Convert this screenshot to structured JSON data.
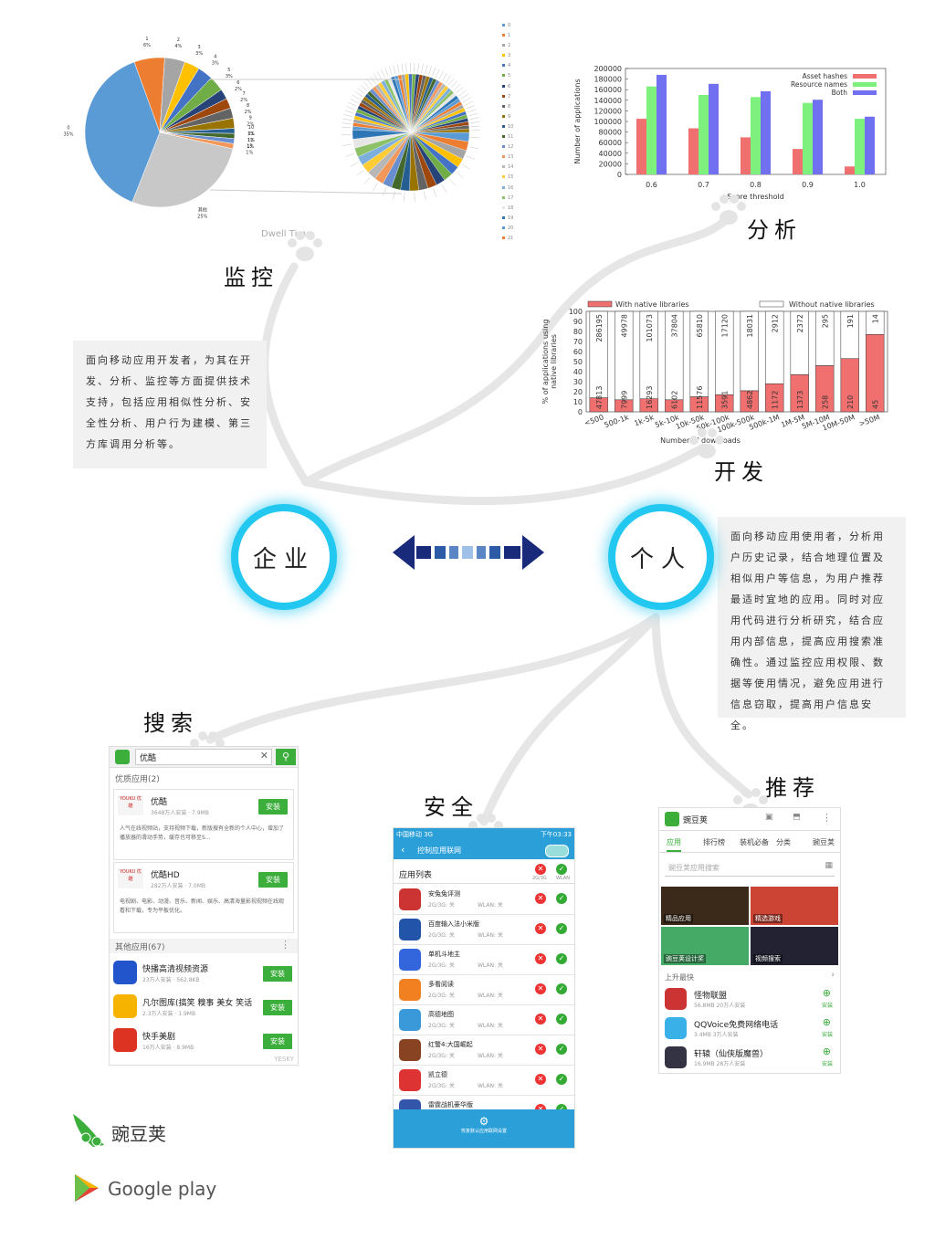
{
  "labels": {
    "monitor": "监控",
    "analyze": "分析",
    "develop": "开发",
    "search": "搜索",
    "security": "安全",
    "recommend": "推荐",
    "enterprise": "企业",
    "personal": "个人",
    "dwell_time": "Dwell Time"
  },
  "notes": {
    "left": "面向移动应用开发者，为其在开发、分析、监控等方面提供技术支持，包括应用相似性分析、安全性分析、用户行为建模、第三方库调用分析等。",
    "right": "面向移动应用使用者，分析用户历史记录，结合地理位置及相似用户等信息，为用户推荐最适时宜地的应用。同时对应用代码进行分析研究，结合应用内部信息，提高应用搜索准确性。通过监控应用权限、数据等使用情况，避免应用进行信息窃取，提高用户信息安全。"
  },
  "logos": {
    "wandoujia": "豌豆荚",
    "google": "Google play"
  },
  "colors": {
    "circle_ring": "#22c8f0",
    "arrow_dark": "#1a2a7a",
    "red": "#f07070",
    "green": "#7ef07e",
    "blue": "#7070f0"
  },
  "chart_data": [
    {
      "type": "pie",
      "labels": [
        "0",
        "1",
        "2",
        "3",
        "4",
        "5",
        "6",
        "7",
        "8",
        "9",
        "10",
        "11",
        "12",
        "13",
        "其他"
      ],
      "values": [
        35,
        6,
        4,
        3,
        3,
        3,
        2,
        2,
        2,
        2,
        1,
        1,
        1,
        1,
        25
      ],
      "value_labels": [
        "35%",
        "6%",
        "4%",
        "3%",
        "3%",
        "3%",
        "2%",
        "2%",
        "2%",
        "2%",
        "1%",
        "1%",
        "1%",
        "1%",
        "25%"
      ],
      "other_label": "其他",
      "other_pct": "25%"
    },
    {
      "type": "pie",
      "legend": [
        "0",
        "1",
        "2",
        "3",
        "4",
        "5",
        "6",
        "7",
        "8",
        "9",
        "10",
        "11",
        "12",
        "13",
        "14",
        "15",
        "16",
        "17",
        "18",
        "19",
        "20",
        "21"
      ],
      "slice_count": 70
    },
    {
      "type": "bar",
      "categories": [
        "0.6",
        "0.7",
        "0.8",
        "0.9",
        "1.0"
      ],
      "series": [
        {
          "name": "Asset hashes",
          "values": [
            105000,
            87000,
            70000,
            48000,
            15000
          ]
        },
        {
          "name": "Resource names",
          "values": [
            166000,
            150000,
            146000,
            135000,
            105000
          ]
        },
        {
          "name": "Both",
          "values": [
            188000,
            171000,
            157000,
            141000,
            109000
          ]
        }
      ],
      "xlabel": "Score threshold",
      "ylabel": "Number of applications",
      "ylim": [
        0,
        200000
      ],
      "yticks": [
        "0",
        "20000",
        "40000",
        "60000",
        "80000",
        "100000",
        "120000",
        "140000",
        "160000",
        "180000",
        "200000"
      ],
      "legend_position": "top-right"
    },
    {
      "type": "bar",
      "stacked": true,
      "categories": [
        "<500",
        "500-1k",
        "1k-5k",
        "5k-10k",
        "10k-50k",
        "50k-100k",
        "100k-500k",
        "500k-1M",
        "1M-5M",
        "5M-10M",
        "10M-50M",
        ">50M"
      ],
      "series": [
        {
          "name": "With native libraries",
          "values": [
            14,
            12,
            13,
            12,
            15,
            17,
            21,
            28,
            37,
            46,
            53,
            77
          ],
          "counts": [
            "47813",
            "7999",
            "16293",
            "6102",
            "11576",
            "3591",
            "4862",
            "1172",
            "1373",
            "258",
            "210",
            "45"
          ]
        },
        {
          "name": "Without native libraries",
          "values": [
            86,
            88,
            87,
            88,
            85,
            83,
            79,
            72,
            63,
            54,
            47,
            23
          ],
          "counts": [
            "286195",
            "49978",
            "101073",
            "37804",
            "65810",
            "17120",
            "18031",
            "2912",
            "2372",
            "295",
            "191",
            "14"
          ]
        }
      ],
      "xlabel": "Number of downloads",
      "ylabel": "% of applications using native libraries",
      "ylim": [
        0,
        100
      ],
      "yticks": [
        "0",
        "10",
        "20",
        "30",
        "40",
        "50",
        "60",
        "70",
        "80",
        "90",
        "100"
      ],
      "legend_position": "top"
    }
  ],
  "phone_search": {
    "query": "优酷",
    "section1": "优质应用(2)",
    "apps1": [
      {
        "name": "优酷",
        "meta": "3648万人安装 · 7.9MB",
        "desc": "人气在线视频站，支持视频下载，新版搜有全新的个人中心，增加了播放器的滑动手势，缓存也可移至S...",
        "btn": "安装",
        "logo": "YOUKU 优酷"
      },
      {
        "name": "优酷HD",
        "meta": "282万人安装 · 7.0MB",
        "desc": "电视剧、电影、动漫、音乐、新闻、娱乐、高清海量影视视频在线观看和下载，专为平板优化。",
        "btn": "安装",
        "logo": "YOUKU 优酷"
      }
    ],
    "section2": "其他应用(67)",
    "apps2": [
      {
        "name": "快播高清视频资源",
        "meta": "23万人安装 · 562.8KB",
        "btn": "安装"
      },
      {
        "name": "凡尔图库(搞笑 糗事 美女 笑话",
        "meta": "2.3万人安装 · 1.9MB",
        "btn": "安装"
      },
      {
        "name": "快手美剧",
        "meta": "16万人安装 · 8.9MB",
        "btn": "安装"
      }
    ],
    "watermark": "YESKY"
  },
  "phone_security": {
    "status": "中国移动 3G",
    "time": "下午03:33",
    "title": "控制应用联网",
    "list_header": "应用列表",
    "col1": "2G/3G",
    "col2": "WLAN",
    "apps": [
      {
        "name": "安兔兔评测",
        "sub": "2G/3G: 关",
        "wlan": "WLAN: 关"
      },
      {
        "name": "百度输入法小米版",
        "sub": "2G/3G: 关",
        "wlan": "WLAN: 关"
      },
      {
        "name": "单机斗地主",
        "sub": "2G/3G: 关",
        "wlan": "WLAN: 关"
      },
      {
        "name": "多看阅读",
        "sub": "2G/3G: 关",
        "wlan": "WLAN: 关"
      },
      {
        "name": "高德地图",
        "sub": "2G/3G: 关",
        "wlan": "WLAN: 关"
      },
      {
        "name": "红警4:大国崛起",
        "sub": "2G/3G: 关",
        "wlan": "WLAN: 关"
      },
      {
        "name": "凯立德",
        "sub": "2G/3G: 关",
        "wlan": "WLAN: 关"
      },
      {
        "name": "雷霆战机豪华版",
        "sub": "",
        "wlan": ""
      }
    ],
    "footer": "恢复默认应用联网设置"
  },
  "phone_recommend": {
    "title": "豌豆荚",
    "tabs": [
      "应用",
      "排行榜",
      "装机必备",
      "分类",
      "豌豆荚"
    ],
    "search_placeholder": "豌豆荚应用搜索",
    "tiles": [
      "精品应用",
      "精选游戏",
      "豌豆荚设计奖",
      "视频搜索"
    ],
    "section": "上升最快",
    "apps": [
      {
        "name": "怪物联盟",
        "meta": "56.8MB  20万人安装",
        "btn": "安装"
      },
      {
        "name": "QQVoice免费网络电话",
        "meta": "3.4MB  3万人安装",
        "btn": "安装"
      },
      {
        "name": "轩辕（仙侠版魔兽）",
        "meta": "16.9MB  28万人安装",
        "btn": "安装"
      }
    ]
  }
}
